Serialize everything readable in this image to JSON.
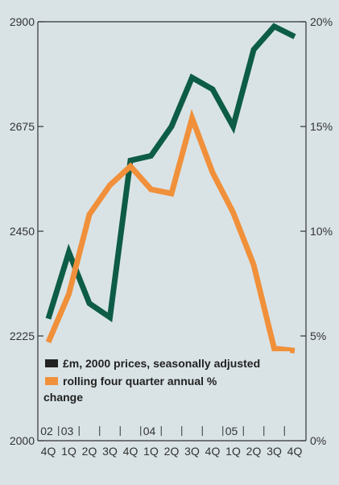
{
  "chart_data": {
    "type": "line",
    "categories": [
      "4Q",
      "1Q",
      "2Q",
      "3Q",
      "4Q",
      "1Q",
      "2Q",
      "3Q",
      "4Q",
      "1Q",
      "2Q",
      "3Q",
      "4Q"
    ],
    "year_labels": [
      {
        "label": "02",
        "index": 0
      },
      {
        "label": "03",
        "index": 1
      },
      {
        "label": "04",
        "index": 5
      },
      {
        "label": "05",
        "index": 9
      }
    ],
    "y_left": {
      "min": 2000,
      "max": 2900,
      "ticks": [
        "2000",
        "2225",
        "2450",
        "2675",
        "2900"
      ],
      "tick_values": [
        2000,
        2225,
        2450,
        2675,
        2900
      ]
    },
    "y_right": {
      "min": 0,
      "max": 20,
      "ticks": [
        "0%",
        "5%",
        "10%",
        "15%",
        "20%"
      ],
      "tick_values": [
        0,
        5,
        10,
        15,
        20
      ]
    },
    "series": [
      {
        "name": "£m, 2000 prices, seasonally adjusted",
        "axis": "left",
        "color": "#0d5c45",
        "values": [
          2262,
          2405,
          2295,
          2265,
          2602,
          2612,
          2675,
          2780,
          2755,
          2675,
          2840,
          2890,
          2868
        ]
      },
      {
        "name": "rolling four quarter annual %",
        "name_line2": "change",
        "axis": "right",
        "color": "#f0903a",
        "values": [
          4.7,
          7.0,
          10.8,
          12.2,
          13.1,
          12.0,
          11.8,
          15.4,
          12.8,
          10.9,
          8.4,
          4.4,
          4.3
        ]
      }
    ],
    "grid": false,
    "legend_position": "bottom-left"
  }
}
